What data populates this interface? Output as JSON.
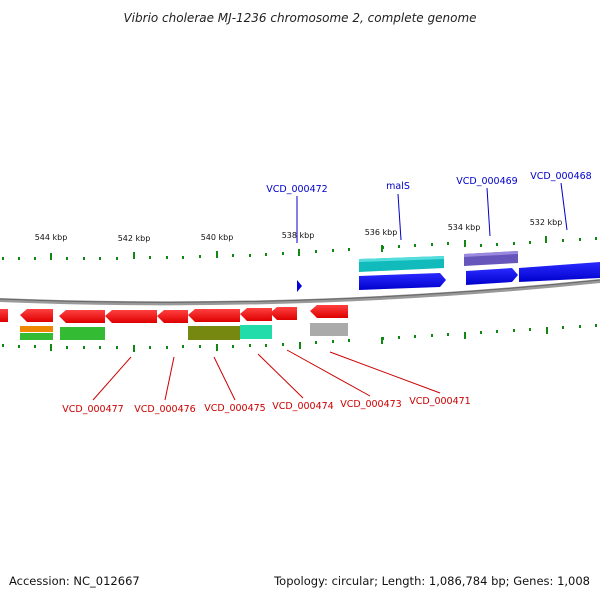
{
  "title": "Vibrio cholerae MJ-1236 chromosome 2, complete genome",
  "footer": {
    "accession": "Accession: NC_012667",
    "summary": "Topology: circular; Length: 1,086,784 bp; Genes: 1,008"
  },
  "colors": {
    "forward_label": "#0000cc",
    "reverse_label": "#cc0000",
    "tick": "#118811",
    "backbone": "#888888"
  },
  "ticks": [
    "544 kbp",
    "542 kbp",
    "540 kbp",
    "538 kbp",
    "536 kbp",
    "534 kbp",
    "532 kbp"
  ],
  "top_labels": [
    "VCD_000472",
    "malS",
    "VCD_000469",
    "VCD_000468"
  ],
  "bottom_labels": [
    "VCD_000477",
    "VCD_000476",
    "VCD_000475",
    "VCD_000474",
    "VCD_000473",
    "VCD_000471"
  ]
}
